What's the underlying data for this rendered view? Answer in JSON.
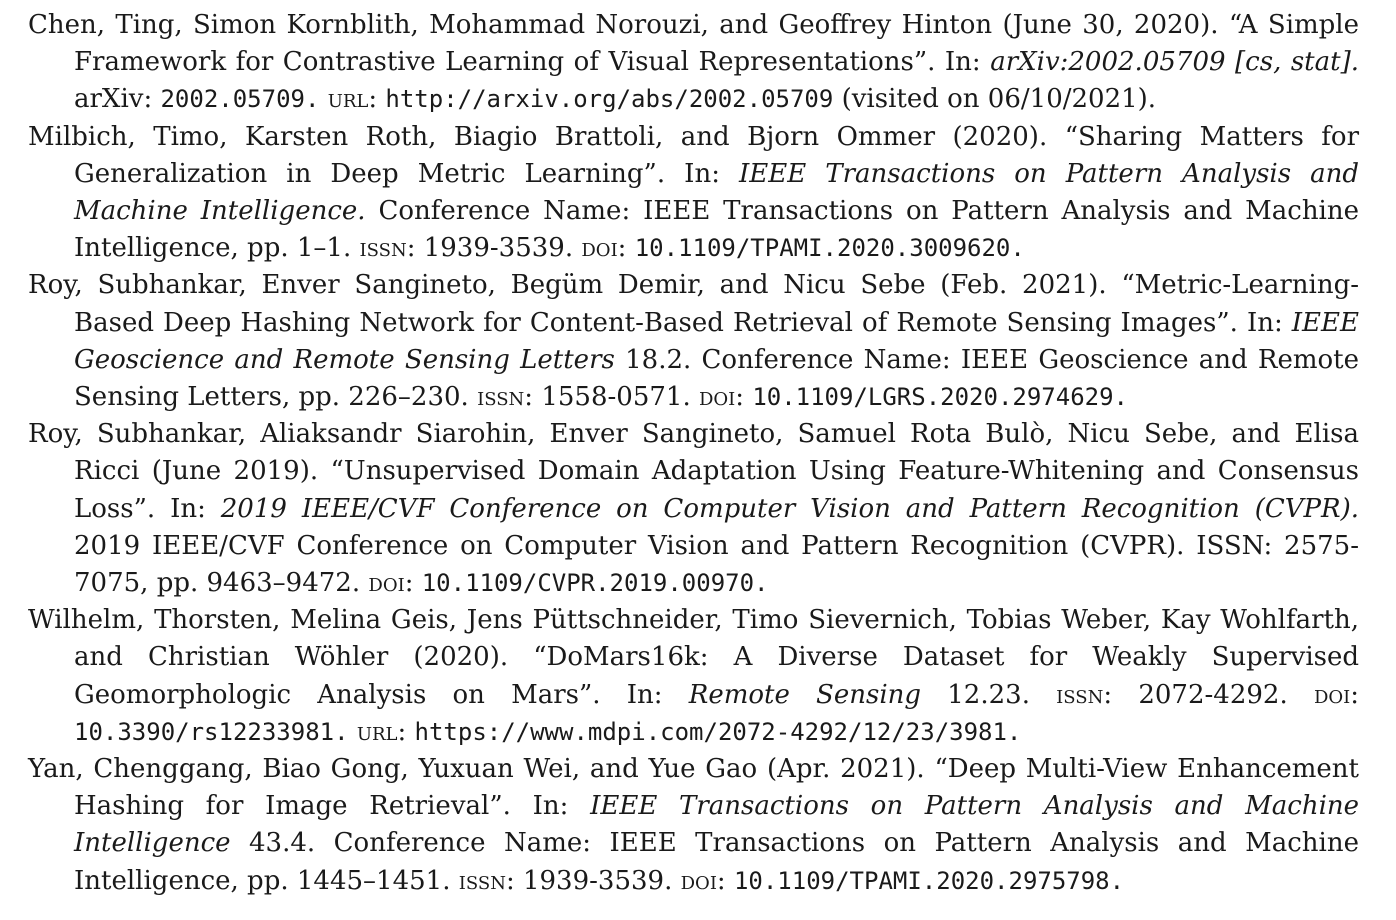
{
  "entries": [
    {
      "authors": "Chen, Ting, Simon Kornblith, Mohammad Norouzi, and Geoffrey Hinton",
      "date": "(June 30, 2020).",
      "title": "“A Simple Framework for Contrastive Learning of Visual Representations”.",
      "in_label": "In:",
      "venue": "arXiv:2002.05709 [cs, stat].",
      "details": "arXiv:",
      "eprint": "2002.05709.",
      "url_label": "url:",
      "url": "http://arxiv.org/abs/2002.05709",
      "visited": "(visited on 06/10/2021)."
    },
    {
      "authors": "Milbich, Timo, Karsten Roth, Biagio Brattoli, and Bjorn Ommer",
      "date": "(2020).",
      "title": "“Sharing Matters for Generalization in Deep Metric Learning”.",
      "in_label": "In:",
      "venue": "IEEE Transactions on Pattern Analysis and Machine Intelligence.",
      "details": "Conference Name: IEEE Transactions on Pattern Analysis and Machine Intelligence, pp. 1–1.",
      "issn_label": "issn:",
      "issn": "1939-3539.",
      "doi_label": "doi:",
      "doi": "10.1109/TPAMI.2020.3009620."
    },
    {
      "authors": "Roy, Subhankar, Enver Sangineto, Begüm Demir, and Nicu Sebe",
      "date": "(Feb. 2021).",
      "title": "“Metric-Learning-Based Deep Hashing Network for Content-Based Retrieval of Remote Sensing Images”.",
      "in_label": "In:",
      "venue": "IEEE Geoscience and Remote Sensing Letters",
      "details": "18.2. Conference Name: IEEE Geoscience and Remote Sensing Letters, pp. 226–230.",
      "issn_label": "issn:",
      "issn": "1558-0571.",
      "doi_label": "doi:",
      "doi": "10.1109/LGRS.2020.2974629."
    },
    {
      "authors": "Roy, Subhankar, Aliaksandr Siarohin, Enver Sangineto, Samuel Rota Bulò, Nicu Sebe, and Elisa Ricci",
      "date": "(June 2019).",
      "title": "“Unsupervised Domain Adaptation Using Feature-Whitening and Consensus Loss”.",
      "in_label": "In:",
      "venue": "2019 IEEE/CVF Conference on Computer Vision and Pattern Recognition (CVPR).",
      "details": "2019 IEEE/CVF Conference on Computer Vision and Pattern Recognition (CVPR). ISSN: 2575-7075, pp. 9463–9472.",
      "doi_label": "doi:",
      "doi": "10.1109/CVPR.2019.00970."
    },
    {
      "authors": "Wilhelm, Thorsten, Melina Geis, Jens Püttschneider, Timo Sievernich, Tobias Weber, Kay Wohlfarth, and Christian Wöhler",
      "date": "(2020).",
      "title": "“DoMars16k: A Diverse Dataset for Weakly Supervised Geomorphologic Analysis on Mars”.",
      "in_label": "In:",
      "venue": "Remote Sensing",
      "details": "12.23.",
      "issn_label": "issn:",
      "issn": "2072-4292.",
      "doi_label": "doi:",
      "doi": "10.3390/rs12233981.",
      "url_label": "url:",
      "url": "https://www.mdpi.com/2072-4292/12/23/3981."
    },
    {
      "authors": "Yan, Chenggang, Biao Gong, Yuxuan Wei, and Yue Gao",
      "date": "(Apr. 2021).",
      "title": "“Deep Multi-View Enhancement Hashing for Image Retrieval”.",
      "in_label": "In:",
      "venue": "IEEE Transactions on Pattern Analysis and Machine Intelligence",
      "details": "43.4. Conference Name: IEEE Transactions on Pattern Analysis and Machine Intelligence, pp. 1445–1451.",
      "issn_label": "issn:",
      "issn": "1939-3539.",
      "doi_label": "doi:",
      "doi": "10.1109/TPAMI.2020.2975798."
    }
  ]
}
